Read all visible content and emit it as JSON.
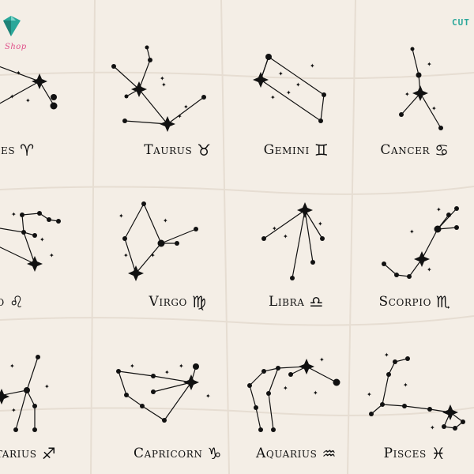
{
  "branding": {
    "shop_text": "Shop",
    "cut_text": "CUT",
    "accent_colors": [
      "#2aa79a",
      "#e0508a"
    ]
  },
  "signs": [
    {
      "key": "aries",
      "label": "ries",
      "glyph": "♈"
    },
    {
      "key": "taurus",
      "label": "Taurus",
      "glyph": "♉"
    },
    {
      "key": "gemini",
      "label": "Gemini",
      "glyph": "♊"
    },
    {
      "key": "cancer",
      "label": "Cancer",
      "glyph": "♋"
    },
    {
      "key": "leo",
      "label": "eo",
      "glyph": "♌"
    },
    {
      "key": "virgo",
      "label": "Virgo",
      "glyph": "♍"
    },
    {
      "key": "libra",
      "label": "Libra",
      "glyph": "♎"
    },
    {
      "key": "scorpio",
      "label": "Scorpio",
      "glyph": "♏"
    },
    {
      "key": "sagittarius",
      "label": "ttarius",
      "glyph": "♐"
    },
    {
      "key": "capricorn",
      "label": "Capricorn",
      "glyph": "♑"
    },
    {
      "key": "aquarius",
      "label": "Aquarius",
      "glyph": "♒"
    },
    {
      "key": "pisces",
      "label": "Pisces",
      "glyph": "♓"
    }
  ]
}
